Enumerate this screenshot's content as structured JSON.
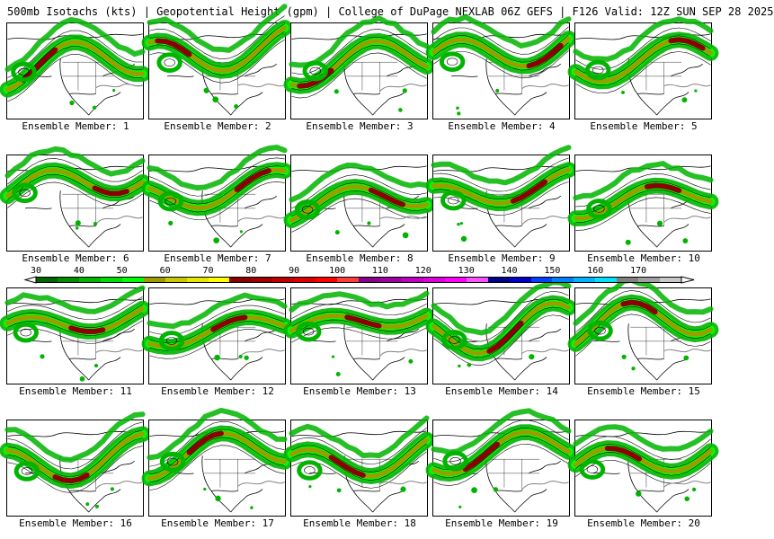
{
  "header": {
    "title": "500mb Isotachs (kts) | Geopotential Height (gpm) | College of DuPage NEXLAB   06Z GEFS | F126 Valid: 12Z SUN SEP 28 2025"
  },
  "panels": [
    {
      "label": "Ensemble Member: 1"
    },
    {
      "label": "Ensemble Member: 2"
    },
    {
      "label": "Ensemble Member: 3"
    },
    {
      "label": "Ensemble Member: 4"
    },
    {
      "label": "Ensemble Member: 5"
    },
    {
      "label": "Ensemble Member: 6"
    },
    {
      "label": "Ensemble Member: 7"
    },
    {
      "label": "Ensemble Member: 8"
    },
    {
      "label": "Ensemble Member: 9"
    },
    {
      "label": "Ensemble Member: 10"
    },
    {
      "label": "Ensemble Member: 11"
    },
    {
      "label": "Ensemble Member: 12"
    },
    {
      "label": "Ensemble Member: 13"
    },
    {
      "label": "Ensemble Member: 14"
    },
    {
      "label": "Ensemble Member: 15"
    },
    {
      "label": "Ensemble Member: 16"
    },
    {
      "label": "Ensemble Member: 17"
    },
    {
      "label": "Ensemble Member: 18"
    },
    {
      "label": "Ensemble Member: 19"
    },
    {
      "label": "Ensemble Member: 20"
    }
  ],
  "colorbar": {
    "ticks": [
      "30",
      "40",
      "50",
      "60",
      "70",
      "80",
      "90",
      "100",
      "110",
      "120",
      "130",
      "140",
      "150",
      "160",
      "170"
    ],
    "colors": [
      "#006400",
      "#008c00",
      "#00b400",
      "#00dc00",
      "#00ff00",
      "#9c9c00",
      "#c8c800",
      "#e6e600",
      "#ffff00",
      "#8b0000",
      "#a00000",
      "#c00000",
      "#dc0000",
      "#ff0000",
      "#ff3c3c",
      "#8b008b",
      "#a000a0",
      "#c000c0",
      "#dc00dc",
      "#ff00ff",
      "#ff50ff",
      "#00008b",
      "#0000c8",
      "#0040ff",
      "#0080ff",
      "#00b4ff",
      "#00e0ff",
      "#808080",
      "#a0a0a0",
      "#c8c8c8"
    ]
  },
  "legend_colors": {
    "green": "#00b400",
    "light_green": "#00ff00",
    "olive": "#9c9c00",
    "dark_red": "#8b0000",
    "height_contour": "#808080"
  }
}
